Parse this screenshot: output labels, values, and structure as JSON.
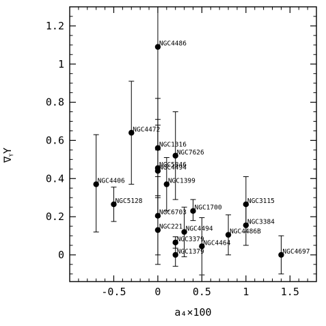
{
  "chart_data": {
    "type": "scatter",
    "xlabel": "a₄×100",
    "ylabel": "∇ᵧΥ",
    "xlim": [
      -1.0,
      1.8
    ],
    "ylim": [
      -0.14,
      1.3
    ],
    "xticks": [
      -0.5,
      0,
      0.5,
      1,
      1.5
    ],
    "xtick_labels": [
      "-0.5",
      "0",
      "0.5",
      "1",
      "1.5"
    ],
    "yticks": [
      0,
      0.2,
      0.4,
      0.6,
      0.8,
      1,
      1.2
    ],
    "ytick_labels": [
      "0",
      "0.2",
      "0.4",
      "0.6",
      "0.8",
      "1",
      "1.2"
    ],
    "grid": false,
    "points": [
      {
        "label": "NGC4486",
        "x": 0.0,
        "y": 1.09,
        "ylo": 0.55,
        "yhi": 1.3
      },
      {
        "label": "NGC4472",
        "x": -0.3,
        "y": 0.64,
        "ylo": 0.37,
        "yhi": 0.91
      },
      {
        "label": "NGC1316",
        "x": 0.0,
        "y": 0.56,
        "ylo": 0.3,
        "yhi": 0.82
      },
      {
        "label": "NGC7626",
        "x": 0.2,
        "y": 0.52,
        "ylo": 0.29,
        "yhi": 0.75
      },
      {
        "label": "NGC5846",
        "x": 0.0,
        "y": 0.455,
        "ylo": 0.2,
        "yhi": 0.71
      },
      {
        "label": "NGC4494",
        "x": 0.0,
        "y": 0.44,
        "ylo": 0.2,
        "yhi": 0.68
      },
      {
        "label": "NGC1399",
        "x": 0.1,
        "y": 0.37,
        "ylo": 0.23,
        "yhi": 0.51
      },
      {
        "label": "NGC4406",
        "x": -0.7,
        "y": 0.37,
        "ylo": 0.12,
        "yhi": 0.63
      },
      {
        "label": "NGC5128",
        "x": -0.5,
        "y": 0.265,
        "ylo": 0.175,
        "yhi": 0.355
      },
      {
        "label": "NGC3115",
        "x": 1.0,
        "y": 0.265,
        "ylo": 0.12,
        "yhi": 0.41
      },
      {
        "label": "NGC1700",
        "x": 0.4,
        "y": 0.23,
        "ylo": 0.18,
        "yhi": 0.29
      },
      {
        "label": "NGC6703",
        "x": 0.0,
        "y": 0.205,
        "ylo": 0.0,
        "yhi": 0.41
      },
      {
        "label": "NGC3384",
        "x": 1.0,
        "y": 0.155,
        "ylo": 0.05,
        "yhi": 0.26
      },
      {
        "label": "NGC221",
        "x": 0.0,
        "y": 0.13,
        "ylo": -0.05,
        "yhi": 0.31
      },
      {
        "label": "NGC4494",
        "x": 0.3,
        "y": 0.12,
        "ylo": -0.01,
        "yhi": 0.25
      },
      {
        "label": "NGC4486B",
        "x": 0.8,
        "y": 0.105,
        "ylo": 0.0,
        "yhi": 0.21
      },
      {
        "label": "NGC3379",
        "x": 0.2,
        "y": 0.065,
        "ylo": 0.035,
        "yhi": 0.095
      },
      {
        "label": "NGC4464",
        "x": 0.5,
        "y": 0.045,
        "ylo": -0.105,
        "yhi": 0.195
      },
      {
        "label": "NGC1379",
        "x": 0.2,
        "y": 0.0,
        "ylo": -0.06,
        "yhi": 0.06
      },
      {
        "label": "NGC4697",
        "x": 1.4,
        "y": 0.0,
        "ylo": -0.1,
        "yhi": 0.1
      }
    ]
  }
}
